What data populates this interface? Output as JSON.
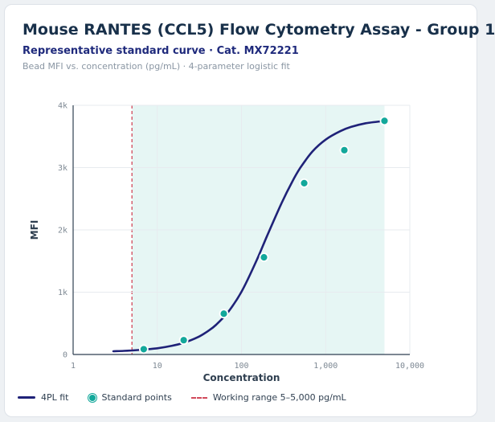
{
  "header": {
    "title": "Mouse RANTES (CCL5) Flow Cytometry Assay - Group 1",
    "subtitle": "Representative standard curve · Cat. MX72221",
    "caption": "Bead MFI vs. concentration (pg/mL) · 4-parameter logistic fit"
  },
  "chart_data": {
    "type": "scatter",
    "xlabel": "Concentration",
    "ylabel": "MFI",
    "x_scale": "log",
    "xlim": [
      1,
      10000
    ],
    "ylim": [
      0,
      4000
    ],
    "x_ticks": [
      {
        "value": 1,
        "label": "1"
      },
      {
        "value": 10,
        "label": "10"
      },
      {
        "value": 100,
        "label": "100"
      },
      {
        "value": 1000,
        "label": "1,000"
      },
      {
        "value": 10000,
        "label": "10,000"
      }
    ],
    "y_ticks": [
      {
        "value": 0,
        "label": "0"
      },
      {
        "value": 1000,
        "label": "1k"
      },
      {
        "value": 2000,
        "label": "2k"
      },
      {
        "value": 3000,
        "label": "3k"
      },
      {
        "value": 4000,
        "label": "4k"
      }
    ],
    "grid": true,
    "working_range": [
      5,
      5000
    ],
    "series": [
      {
        "name": "4PL fit",
        "kind": "line",
        "color": "#1f2278",
        "x": [
          3,
          4,
          5,
          7,
          10,
          15,
          20,
          30,
          40,
          50,
          70,
          100,
          150,
          200,
          300,
          400,
          500,
          700,
          1000,
          1500,
          2000,
          3000,
          5000
        ],
        "y": [
          52,
          58,
          65,
          79,
          100,
          140,
          182,
          275,
          375,
          477,
          688,
          1006,
          1498,
          1893,
          2432,
          2771,
          2997,
          3261,
          3449,
          3586,
          3653,
          3712,
          3750
        ]
      },
      {
        "name": "Standard points",
        "kind": "points",
        "color": "#13a89b",
        "x": [
          6.9,
          20.6,
          61.7,
          185,
          556,
          1667,
          5000
        ],
        "y": [
          85,
          230,
          655,
          1560,
          2750,
          3280,
          3750
        ]
      }
    ],
    "legend": {
      "placement": "bottom-left",
      "entries": [
        "4PL fit",
        "Standard points",
        "Working range 5–5,000 pg/mL"
      ]
    }
  }
}
